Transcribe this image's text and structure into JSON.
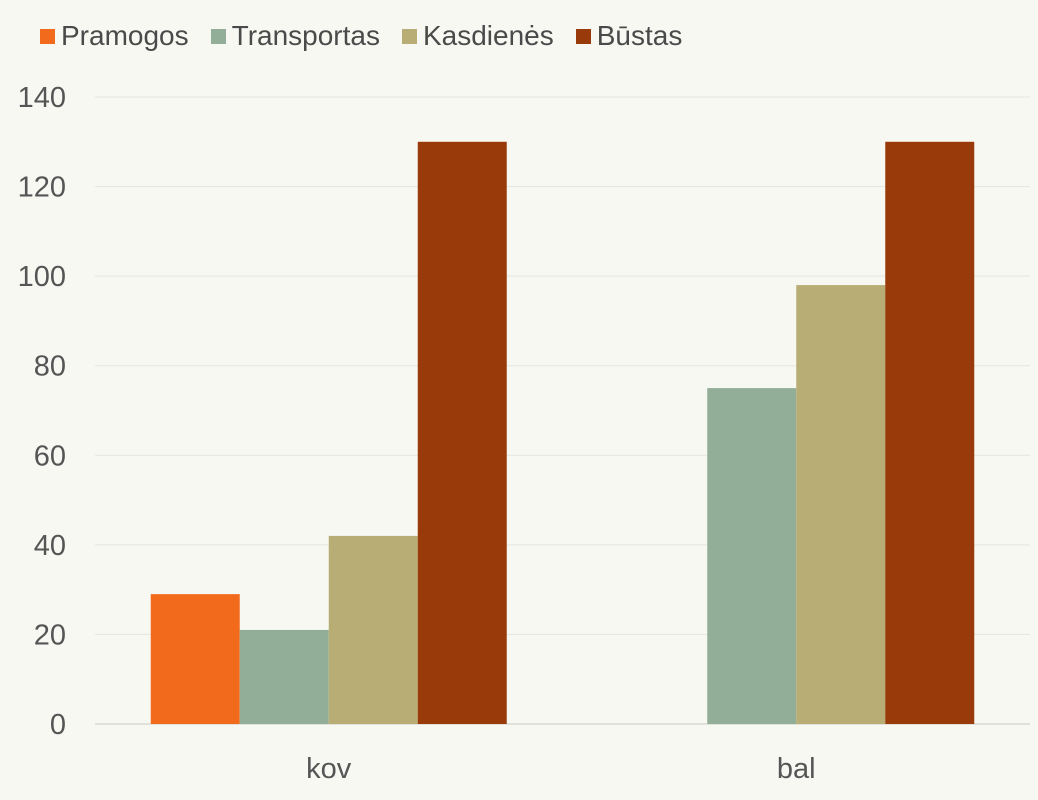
{
  "chart_data": {
    "type": "bar",
    "categories": [
      "kov",
      "bal"
    ],
    "series": [
      {
        "name": "Pramogos",
        "values": [
          29,
          null
        ],
        "color": "#f26b1d"
      },
      {
        "name": "Transportas",
        "values": [
          21,
          75
        ],
        "color": "#93ae98"
      },
      {
        "name": "Kasdienės",
        "values": [
          42,
          98
        ],
        "color": "#b8ad74"
      },
      {
        "name": "Būstas",
        "values": [
          130,
          130
        ],
        "color": "#993a0b"
      }
    ],
    "title": "",
    "xlabel": "",
    "ylabel": "",
    "ylim": [
      0,
      140
    ],
    "yticks": [
      "0",
      "20",
      "40",
      "60",
      "80",
      "100",
      "120",
      "140"
    ],
    "grid": true,
    "legend_position": "top-left"
  }
}
